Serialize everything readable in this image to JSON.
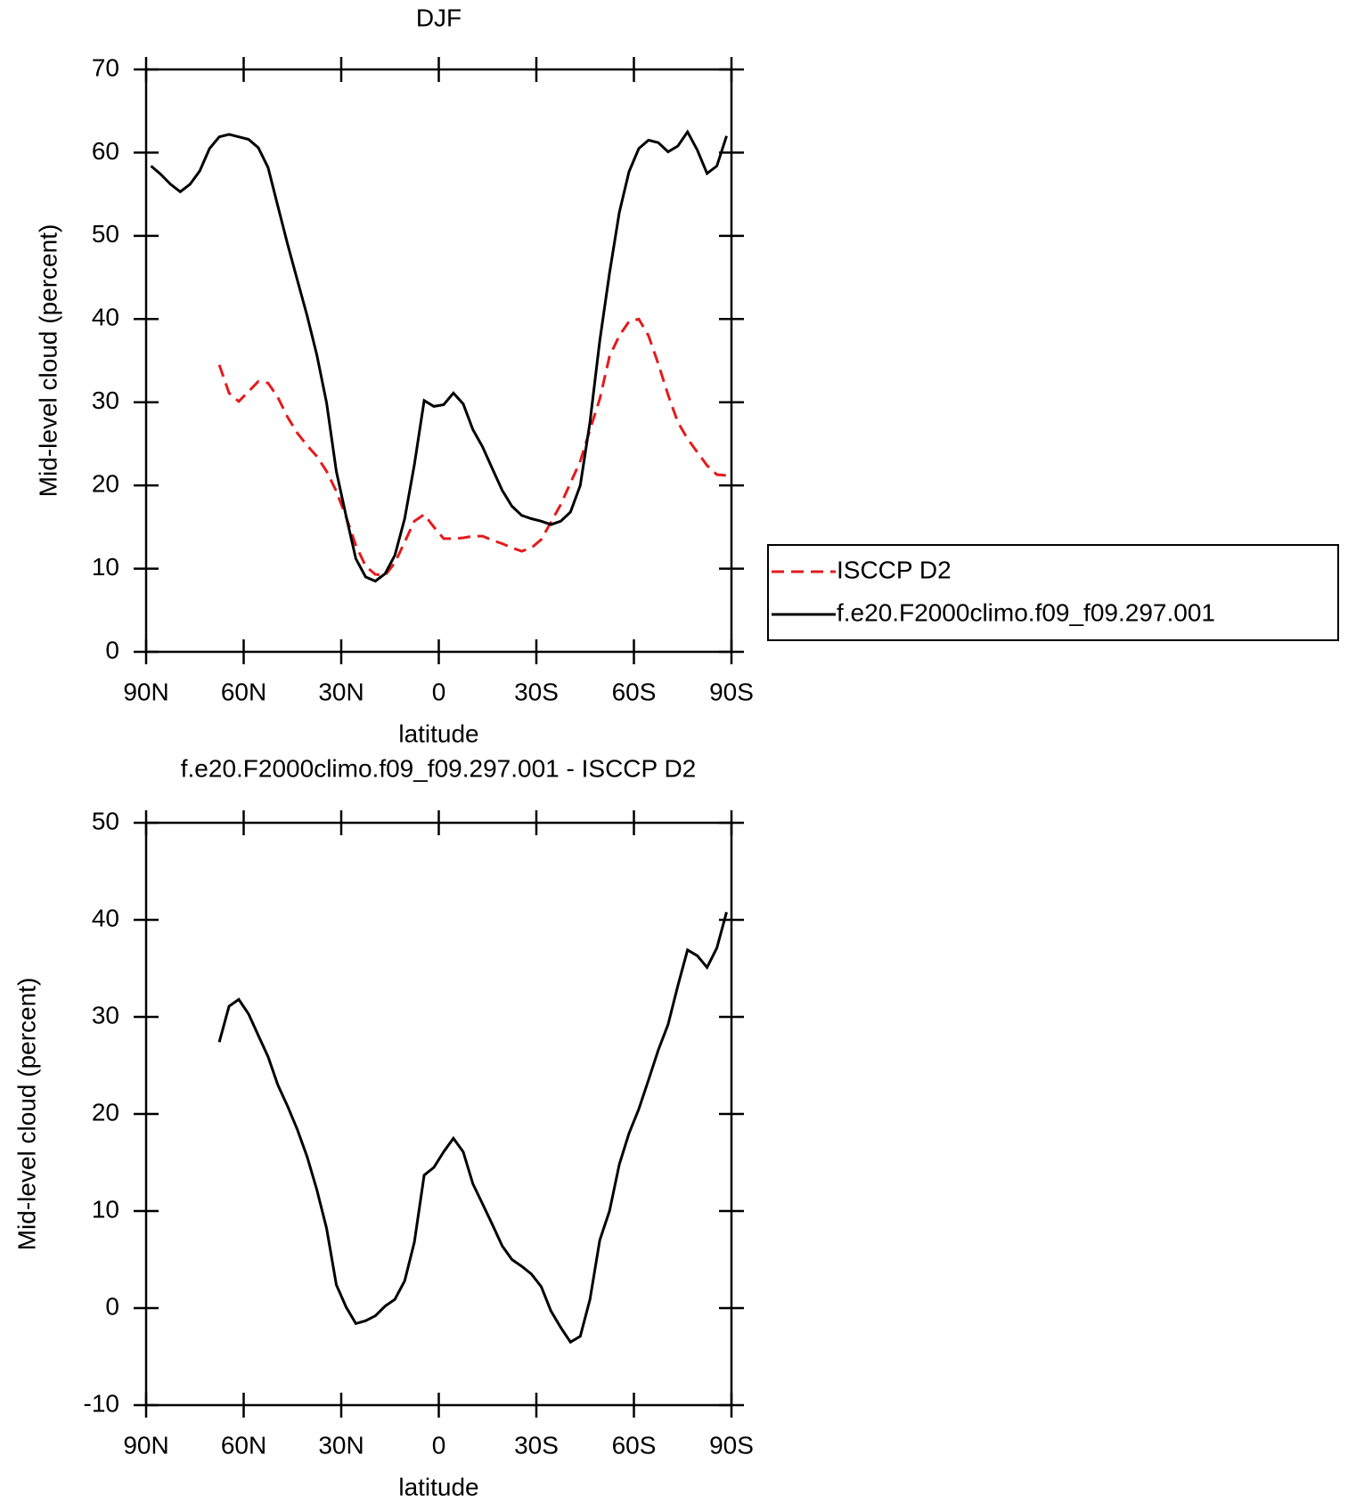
{
  "chart_data": [
    {
      "type": "line",
      "title": "DJF",
      "xlabel": "latitude",
      "ylabel": "Mid-level cloud (percent)",
      "x": [
        88.5,
        85.5,
        82.5,
        79.5,
        76.5,
        73.5,
        70.5,
        67.5,
        64.5,
        61.5,
        58.5,
        55.5,
        52.5,
        49.5,
        46.5,
        43.5,
        40.5,
        37.5,
        34.5,
        31.5,
        28.5,
        25.5,
        22.5,
        19.5,
        16.5,
        13.5,
        10.5,
        7.5,
        4.5,
        1.5,
        -1.5,
        -4.5,
        -7.5,
        -10.5,
        -13.5,
        -16.5,
        -19.5,
        -22.5,
        -25.5,
        -28.5,
        -31.5,
        -34.5,
        -37.5,
        -40.5,
        -43.5,
        -46.5,
        -49.5,
        -52.5,
        -55.5,
        -58.5,
        -61.5,
        -64.5,
        -67.5,
        -70.5,
        -73.5,
        -76.5,
        -79.5,
        -82.5,
        -85.5,
        -88.5
      ],
      "series": [
        {
          "name": "ISCCP D2",
          "color": "#e41a1c",
          "dashed": true,
          "values": [
            null,
            null,
            null,
            null,
            null,
            null,
            null,
            34.5,
            31.1,
            30.1,
            31.3,
            32.5,
            32.3,
            30.6,
            28.2,
            26.3,
            24.8,
            23.5,
            21.7,
            19.3,
            16.2,
            12.8,
            10.3,
            9.3,
            9.2,
            10.7,
            13.2,
            15.7,
            16.5,
            15,
            13.6,
            13.6,
            13.7,
            13.9,
            13.9,
            13.4,
            13,
            12.5,
            12.1,
            12.5,
            13.5,
            15.6,
            17.7,
            20.3,
            22.9,
            26.7,
            30.4,
            35.5,
            38,
            39.7,
            40,
            38,
            34.6,
            30.9,
            27.6,
            25.6,
            24,
            22.4,
            21.3,
            21.2
          ]
        },
        {
          "name": "f.e20.F2000climo.f09_f09.297.001",
          "color": "#000000",
          "dashed": false,
          "values": [
            58.4,
            57.4,
            56.2,
            55.3,
            56.2,
            57.8,
            60.5,
            61.9,
            62.2,
            61.9,
            61.6,
            60.6,
            58.2,
            53.6,
            49,
            44.7,
            40.4,
            35.7,
            29.9,
            21.7,
            16.3,
            11.2,
            9,
            8.5,
            9.4,
            11.6,
            16,
            22.5,
            30.2,
            29.5,
            29.7,
            31.1,
            29.8,
            26.7,
            24.6,
            22,
            19.4,
            17.5,
            16.4,
            16,
            15.7,
            15.3,
            15.7,
            16.8,
            20,
            27.6,
            37.4,
            45.5,
            52.8,
            57.7,
            60.5,
            61.5,
            61.2,
            60.1,
            60.8,
            62.5,
            60.3,
            57.5,
            58.4,
            62
          ]
        }
      ],
      "xlim": [
        90,
        -90
      ],
      "xticks": [
        {
          "value": 90,
          "label": "90N"
        },
        {
          "value": 60,
          "label": "60N"
        },
        {
          "value": 30,
          "label": "30N"
        },
        0,
        {
          "value": -30,
          "label": "30S"
        },
        {
          "value": -60,
          "label": "60S"
        },
        {
          "value": -90,
          "label": "90S"
        }
      ],
      "ylim": [
        0,
        70
      ],
      "yticks": [
        0,
        10,
        20,
        30,
        40,
        50,
        60,
        70
      ],
      "legend": "right"
    },
    {
      "type": "line",
      "title": "f.e20.F2000climo.f09_f09.297.001 - ISCCP D2",
      "xlabel": "latitude",
      "ylabel": "Mid-level cloud (percent)",
      "x": [
        67.5,
        64.5,
        61.5,
        58.5,
        55.5,
        52.5,
        49.5,
        46.5,
        43.5,
        40.5,
        37.5,
        34.5,
        31.5,
        28.5,
        25.5,
        22.5,
        19.5,
        16.5,
        13.5,
        10.5,
        7.5,
        4.5,
        1.5,
        -1.5,
        -4.5,
        -7.5,
        -10.5,
        -13.5,
        -16.5,
        -19.5,
        -22.5,
        -25.5,
        -28.5,
        -31.5,
        -34.5,
        -37.5,
        -40.5,
        -43.5,
        -46.5,
        -49.5,
        -52.5,
        -55.5,
        -58.5,
        -61.5,
        -64.5,
        -67.5,
        -70.5,
        -73.5,
        -76.5,
        -79.5,
        -82.5,
        -85.5,
        -88.5
      ],
      "series": [
        {
          "color": "#000000",
          "dashed": false,
          "values": [
            27.4,
            31.1,
            31.8,
            30.3,
            28.1,
            25.9,
            23,
            20.8,
            18.4,
            15.6,
            12.2,
            8.2,
            2.4,
            0.1,
            -1.6,
            -1.3,
            -0.8,
            0.2,
            0.9,
            2.8,
            6.8,
            13.7,
            14.5,
            16.1,
            17.5,
            16.1,
            12.8,
            10.7,
            8.6,
            6.4,
            5,
            4.3,
            3.5,
            2.2,
            -0.3,
            -2,
            -3.5,
            -2.9,
            0.9,
            7,
            10,
            14.8,
            18,
            20.5,
            23.5,
            26.6,
            29.2,
            33.2,
            36.9,
            36.3,
            35.1,
            37.1,
            40.8
          ]
        }
      ],
      "xlim": [
        90,
        -90
      ],
      "xticks": [
        {
          "value": 90,
          "label": "90N"
        },
        {
          "value": 60,
          "label": "60N"
        },
        {
          "value": 30,
          "label": "30N"
        },
        0,
        {
          "value": -30,
          "label": "30S"
        },
        {
          "value": -60,
          "label": "60S"
        },
        {
          "value": -90,
          "label": "90S"
        }
      ],
      "ylim": [
        -10,
        50
      ],
      "yticks": [
        -10,
        0,
        10,
        20,
        30,
        40,
        50
      ]
    }
  ]
}
